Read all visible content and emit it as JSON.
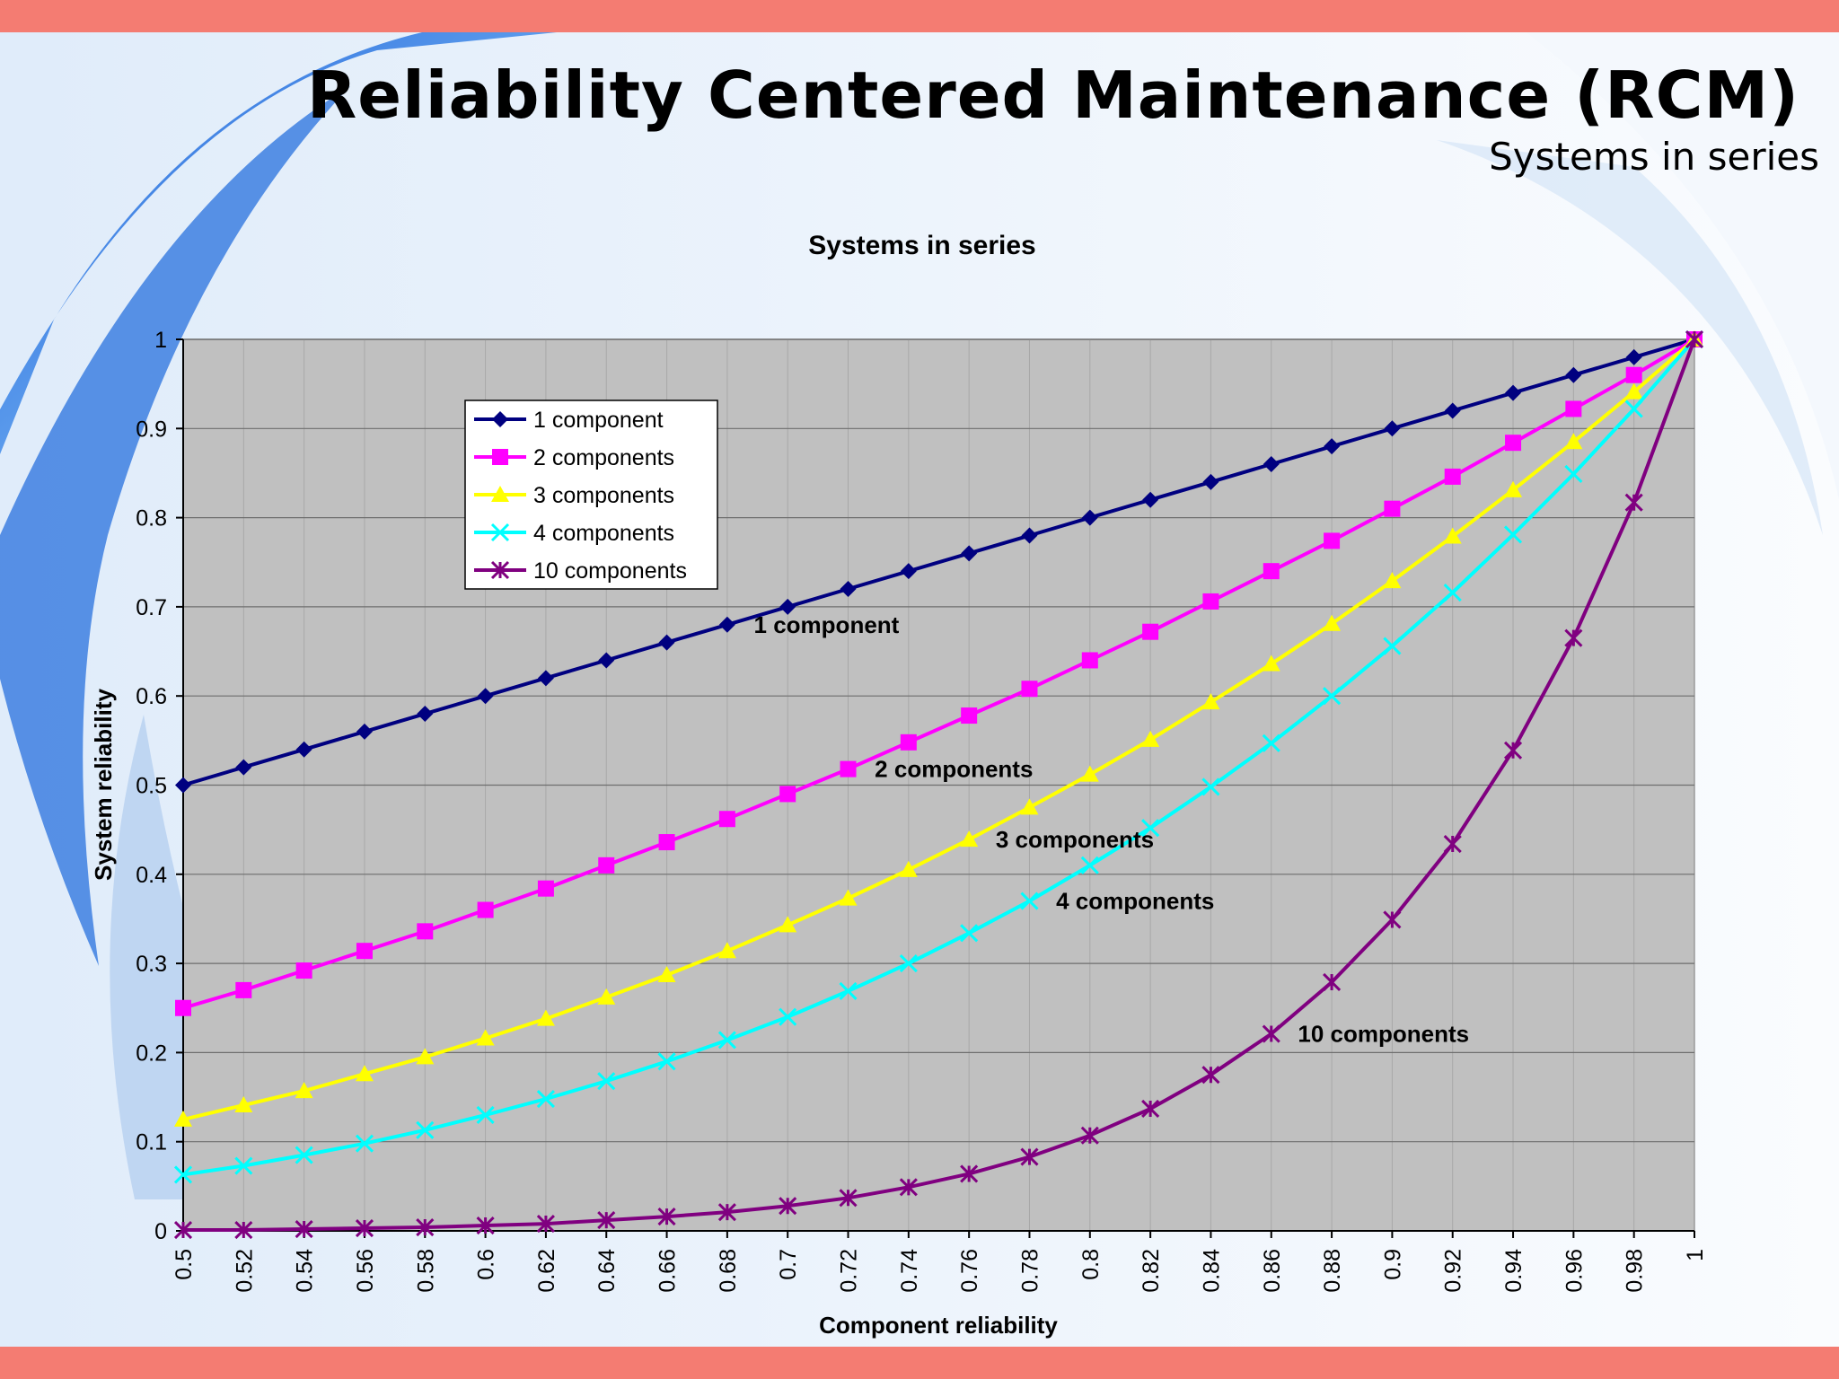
{
  "slide": {
    "title": "Reliability Centered Maintenance (RCM)",
    "subtitle": "Systems in series"
  },
  "colors": {
    "top_bar": "#f47c72",
    "plot_background": "#c0c0c0",
    "series": [
      "#000080",
      "#ff00ff",
      "#ffff00",
      "#00ffff",
      "#800080"
    ]
  },
  "chart_data": {
    "type": "line",
    "title": "Systems in series",
    "xlabel": "Component reliability",
    "ylabel": "System reliability",
    "xlim": [
      0.5,
      1
    ],
    "ylim": [
      0,
      1
    ],
    "grid": true,
    "legend_position": "top-left",
    "x": [
      0.5,
      0.52,
      0.54,
      0.56,
      0.58,
      0.6,
      0.62,
      0.64,
      0.66,
      0.68,
      0.7,
      0.72,
      0.74,
      0.76,
      0.78,
      0.8,
      0.82,
      0.84,
      0.86,
      0.88,
      0.9,
      0.92,
      0.94,
      0.96,
      0.98,
      1
    ],
    "x_tick_labels": [
      "0.5",
      "0.52",
      "0.54",
      "0.56",
      "0.58",
      "0.6",
      "0.62",
      "0.64",
      "0.66",
      "0.68",
      "0.7",
      "0.72",
      "0.74",
      "0.76",
      "0.78",
      "0.8",
      "0.82",
      "0.84",
      "0.86",
      "0.88",
      "0.9",
      "0.92",
      "0.94",
      "0.96",
      "0.98",
      "1"
    ],
    "y_tick_labels": [
      "0",
      "0.1",
      "0.2",
      "0.3",
      "0.4",
      "0.5",
      "0.6",
      "0.7",
      "0.8",
      "0.9",
      "1"
    ],
    "series": [
      {
        "name": "1 component",
        "color": "#000080",
        "marker": "diamond",
        "values": [
          0.5,
          0.52,
          0.54,
          0.56,
          0.58,
          0.6,
          0.62,
          0.64,
          0.66,
          0.68,
          0.7,
          0.72,
          0.74,
          0.76,
          0.78,
          0.8,
          0.82,
          0.84,
          0.86,
          0.88,
          0.9,
          0.92,
          0.94,
          0.96,
          0.98,
          1
        ]
      },
      {
        "name": "2 components",
        "color": "#ff00ff",
        "marker": "square",
        "values": [
          0.25,
          0.27,
          0.292,
          0.314,
          0.336,
          0.36,
          0.384,
          0.41,
          0.436,
          0.462,
          0.49,
          0.518,
          0.548,
          0.578,
          0.608,
          0.64,
          0.672,
          0.706,
          0.74,
          0.774,
          0.81,
          0.846,
          0.884,
          0.922,
          0.96,
          1
        ]
      },
      {
        "name": "3 components",
        "color": "#ffff00",
        "marker": "triangle",
        "values": [
          0.125,
          0.141,
          0.157,
          0.176,
          0.195,
          0.216,
          0.238,
          0.262,
          0.287,
          0.314,
          0.343,
          0.373,
          0.405,
          0.439,
          0.475,
          0.512,
          0.551,
          0.593,
          0.636,
          0.681,
          0.729,
          0.779,
          0.831,
          0.885,
          0.941,
          1
        ]
      },
      {
        "name": "4 components",
        "color": "#00ffff",
        "marker": "x",
        "values": [
          0.063,
          0.073,
          0.085,
          0.098,
          0.113,
          0.13,
          0.148,
          0.168,
          0.19,
          0.214,
          0.24,
          0.269,
          0.3,
          0.334,
          0.37,
          0.41,
          0.452,
          0.498,
          0.547,
          0.6,
          0.656,
          0.716,
          0.781,
          0.849,
          0.922,
          1
        ]
      },
      {
        "name": "10 components",
        "color": "#800080",
        "marker": "star",
        "values": [
          0.001,
          0.001,
          0.002,
          0.003,
          0.004,
          0.006,
          0.008,
          0.012,
          0.016,
          0.021,
          0.028,
          0.037,
          0.049,
          0.064,
          0.083,
          0.107,
          0.137,
          0.175,
          0.221,
          0.279,
          0.349,
          0.434,
          0.539,
          0.665,
          0.817,
          1
        ]
      }
    ],
    "annotations": [
      {
        "text": "1 component",
        "x": 0.69,
        "y": 0.68
      },
      {
        "text": "2 components",
        "x": 0.73,
        "y": 0.518
      },
      {
        "text": "3 components",
        "x": 0.77,
        "y": 0.439
      },
      {
        "text": "4 components",
        "x": 0.79,
        "y": 0.37
      },
      {
        "text": "10 components",
        "x": 0.87,
        "y": 0.221
      }
    ]
  }
}
